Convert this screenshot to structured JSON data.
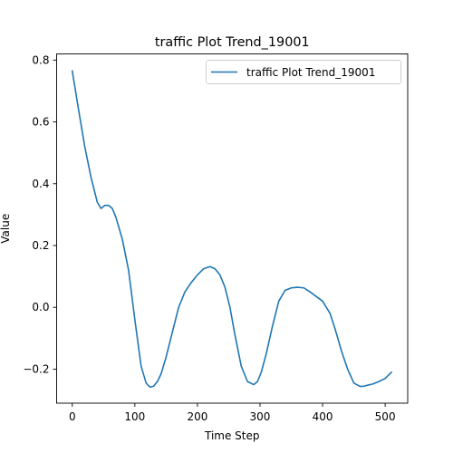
{
  "chart_data": {
    "type": "line",
    "title": "traffic Plot Trend_19001",
    "xlabel": "Time Step",
    "ylabel": "Value",
    "xlim": [
      -25,
      536
    ],
    "ylim": [
      -0.31,
      0.82
    ],
    "xticks": [
      0,
      100,
      200,
      300,
      400,
      500
    ],
    "yticks": [
      -0.2,
      0.0,
      0.2,
      0.4,
      0.6,
      0.8
    ],
    "ytick_labels": [
      "−0.2",
      "0.0",
      "0.2",
      "0.4",
      "0.6",
      "0.8"
    ],
    "grid": false,
    "legend_position": "top-right",
    "series": [
      {
        "name": "traffic Plot Trend_19001",
        "color": "#1f77b4",
        "x": [
          0,
          10,
          20,
          30,
          40,
          46,
          52,
          58,
          64,
          70,
          80,
          90,
          100,
          110,
          118,
          124,
          130,
          136,
          142,
          150,
          160,
          170,
          180,
          190,
          200,
          210,
          220,
          228,
          236,
          244,
          252,
          260,
          270,
          280,
          290,
          296,
          302,
          310,
          320,
          330,
          340,
          350,
          360,
          370,
          380,
          390,
          400,
          412,
          420,
          430,
          440,
          450,
          460,
          466,
          472,
          480,
          490,
          500,
          510
        ],
        "y": [
          0.765,
          0.64,
          0.52,
          0.42,
          0.34,
          0.32,
          0.33,
          0.33,
          0.32,
          0.29,
          0.22,
          0.12,
          -0.04,
          -0.19,
          -0.245,
          -0.258,
          -0.255,
          -0.24,
          -0.215,
          -0.16,
          -0.08,
          0.0,
          0.05,
          0.08,
          0.105,
          0.125,
          0.132,
          0.125,
          0.105,
          0.065,
          0.0,
          -0.09,
          -0.19,
          -0.24,
          -0.25,
          -0.24,
          -0.21,
          -0.15,
          -0.06,
          0.02,
          0.055,
          0.063,
          0.065,
          0.063,
          0.05,
          0.035,
          0.02,
          -0.02,
          -0.07,
          -0.14,
          -0.2,
          -0.245,
          -0.256,
          -0.255,
          -0.252,
          -0.248,
          -0.24,
          -0.23,
          -0.21
        ]
      }
    ]
  }
}
